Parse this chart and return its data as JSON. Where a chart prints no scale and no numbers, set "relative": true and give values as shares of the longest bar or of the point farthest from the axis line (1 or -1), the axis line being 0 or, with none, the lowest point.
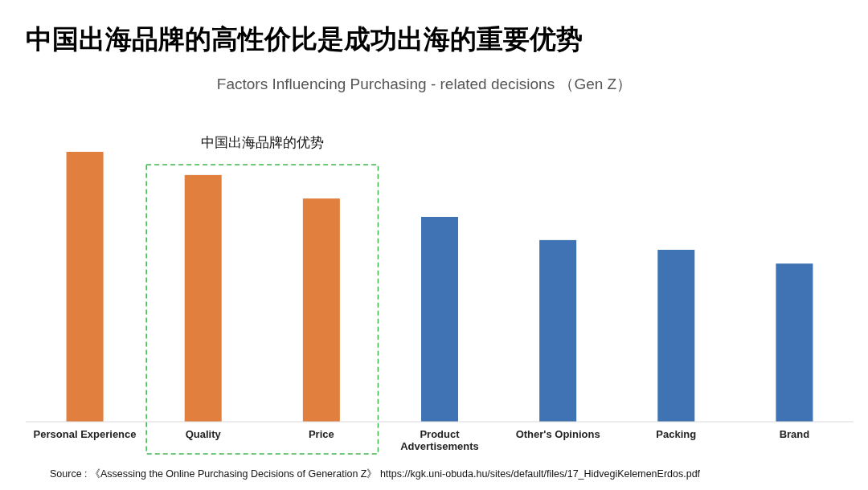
{
  "chart_data": {
    "type": "bar",
    "title": "中国出海品牌的高性价比是成功出海的重要优势",
    "subtitle": "Factors Influencing Purchasing - related decisions （Gen Z）",
    "categories": [
      "Personal Experience",
      "Quality",
      "Price",
      "Product\nAdvertisements",
      "Other's Opinions",
      "Packing",
      "Brand"
    ],
    "values": [
      1,
      0.914,
      0.827,
      0.759,
      0.673,
      0.637,
      0.586
    ],
    "colors": [
      "#e07f3e",
      "#e07f3e",
      "#e07f3e",
      "#3f73b3",
      "#3f73b3",
      "#3f73b3",
      "#3f73b3"
    ],
    "relative": true,
    "annotations": [
      "中国出海品牌的优势",
      "Source : 《Assessing the Online Purchasing Decisions of Generation Z》 https://kgk.uni-obuda.hu/sites/default/files/17_HidvegiKelemenErdos.pdf"
    ]
  }
}
